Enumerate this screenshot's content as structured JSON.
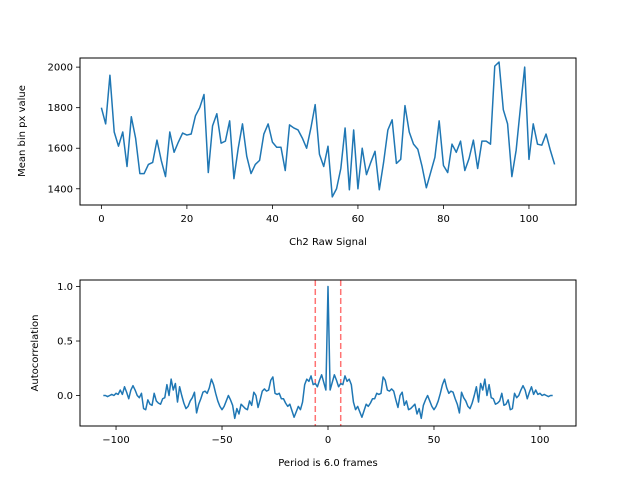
{
  "chart_data": [
    {
      "type": "line",
      "title": "",
      "xlabel": "Ch2 Raw Signal",
      "ylabel": "Mean bin px value",
      "xlim": [
        -5,
        111
      ],
      "ylim": [
        1320,
        2045
      ],
      "xticks": [
        0,
        20,
        40,
        60,
        80,
        100
      ],
      "yticks": [
        1400,
        1600,
        1800,
        2000
      ],
      "grid": false,
      "color": "#1f77b4",
      "series": [
        {
          "x": [
            0,
            1,
            2,
            3,
            4,
            5,
            6,
            7,
            8,
            9,
            10,
            11,
            12,
            13,
            14,
            15,
            16,
            17,
            18,
            19,
            20,
            21,
            22,
            23,
            24,
            25,
            26,
            27,
            28,
            29,
            30,
            31,
            32,
            33,
            34,
            35,
            36,
            37,
            38,
            39,
            40,
            41,
            42,
            43,
            44,
            45,
            46,
            47,
            48,
            49,
            50,
            51,
            52,
            53,
            54,
            55,
            56,
            57,
            58,
            59,
            60,
            61,
            62,
            63,
            64,
            65,
            66,
            67,
            68,
            69,
            70,
            71,
            72,
            73,
            74,
            75,
            76,
            77,
            78,
            79,
            80,
            81,
            82,
            83,
            84,
            85,
            86,
            87,
            88,
            89,
            90,
            91,
            92,
            93,
            94,
            95,
            96,
            97,
            98,
            99,
            100,
            101,
            102,
            103,
            104,
            105,
            106
          ],
          "y": [
            1800,
            1720,
            1960,
            1680,
            1610,
            1680,
            1510,
            1755,
            1650,
            1475,
            1475,
            1520,
            1530,
            1640,
            1540,
            1460,
            1680,
            1580,
            1630,
            1675,
            1665,
            1670,
            1760,
            1800,
            1865,
            1480,
            1710,
            1770,
            1625,
            1635,
            1735,
            1450,
            1600,
            1720,
            1560,
            1475,
            1520,
            1540,
            1670,
            1720,
            1630,
            1605,
            1605,
            1490,
            1715,
            1700,
            1690,
            1650,
            1600,
            1700,
            1815,
            1570,
            1510,
            1610,
            1360,
            1400,
            1500,
            1700,
            1395,
            1690,
            1400,
            1600,
            1470,
            1530,
            1585,
            1395,
            1530,
            1690,
            1740,
            1525,
            1545,
            1810,
            1680,
            1620,
            1595,
            1510,
            1405,
            1480,
            1555,
            1735,
            1515,
            1480,
            1620,
            1580,
            1635,
            1490,
            1550,
            1640,
            1500,
            1635,
            1635,
            1620,
            2005,
            2025,
            1790,
            1720,
            1460,
            1590,
            1800,
            2000,
            1545,
            1720,
            1620,
            1615,
            1670,
            1590,
            1520
          ]
        }
      ]
    },
    {
      "type": "line",
      "title": "",
      "xlabel": "Period is 6.0 frames",
      "ylabel": "Autocorrelation",
      "xlim": [
        -117,
        117
      ],
      "ylim": [
        -0.28,
        1.06
      ],
      "xticks": [
        -100,
        -50,
        0,
        50,
        100
      ],
      "yticks": [
        0.0,
        0.5,
        1.0
      ],
      "grid": false,
      "color": "#1f77b4",
      "vlines": [
        -6,
        6
      ],
      "vline_color": "#ff0000",
      "series": [
        {
          "x": [
            -106,
            -105,
            -104,
            -103,
            -102,
            -101,
            -100,
            -99,
            -98,
            -97,
            -96,
            -95,
            -94,
            -93,
            -92,
            -91,
            -90,
            -89,
            -88,
            -87,
            -86,
            -85,
            -84,
            -83,
            -82,
            -81,
            -80,
            -79,
            -78,
            -77,
            -76,
            -75,
            -74,
            -73,
            -72,
            -71,
            -70,
            -69,
            -68,
            -67,
            -66,
            -65,
            -64,
            -63,
            -62,
            -61,
            -60,
            -59,
            -58,
            -57,
            -56,
            -55,
            -54,
            -53,
            -52,
            -51,
            -50,
            -49,
            -48,
            -47,
            -46,
            -45,
            -44,
            -43,
            -42,
            -41,
            -40,
            -39,
            -38,
            -37,
            -36,
            -35,
            -34,
            -33,
            -32,
            -31,
            -30,
            -29,
            -28,
            -27,
            -26,
            -25,
            -24,
            -23,
            -22,
            -21,
            -20,
            -19,
            -18,
            -17,
            -16,
            -15,
            -14,
            -13,
            -12,
            -11,
            -10,
            -9,
            -8,
            -7,
            -6,
            -5,
            -4,
            -3,
            -2,
            -1,
            0,
            1,
            2,
            3,
            4,
            5,
            6,
            7,
            8,
            9,
            10,
            11,
            12,
            13,
            14,
            15,
            16,
            17,
            18,
            19,
            20,
            21,
            22,
            23,
            24,
            25,
            26,
            27,
            28,
            29,
            30,
            31,
            32,
            33,
            34,
            35,
            36,
            37,
            38,
            39,
            40,
            41,
            42,
            43,
            44,
            45,
            46,
            47,
            48,
            49,
            50,
            51,
            52,
            53,
            54,
            55,
            56,
            57,
            58,
            59,
            60,
            61,
            62,
            63,
            64,
            65,
            66,
            67,
            68,
            69,
            70,
            71,
            72,
            73,
            74,
            75,
            76,
            77,
            78,
            79,
            80,
            81,
            82,
            83,
            84,
            85,
            86,
            87,
            88,
            89,
            90,
            91,
            92,
            93,
            94,
            95,
            96,
            97,
            98,
            99,
            100,
            101,
            102,
            103,
            104,
            105,
            106
          ],
          "y": [
            0.0,
            0.0,
            -0.01,
            0.0,
            0.01,
            0.0,
            0.02,
            0.01,
            0.05,
            0.01,
            0.08,
            0.03,
            -0.03,
            0.05,
            0.09,
            0.05,
            0.0,
            -0.02,
            0.02,
            -0.12,
            -0.13,
            -0.04,
            -0.08,
            -0.09,
            0.02,
            -0.05,
            -0.07,
            -0.08,
            -0.03,
            -0.02,
            0.1,
            0.0,
            0.15,
            0.05,
            0.11,
            -0.06,
            0.08,
            0.0,
            -0.07,
            -0.12,
            -0.1,
            -0.05,
            -0.02,
            0.03,
            -0.16,
            -0.08,
            -0.03,
            0.03,
            0.04,
            0.02,
            0.07,
            0.15,
            0.1,
            0.02,
            -0.05,
            -0.1,
            -0.13,
            -0.1,
            -0.05,
            0.0,
            -0.04,
            -0.09,
            -0.21,
            -0.12,
            -0.17,
            -0.08,
            -0.1,
            -0.12,
            -0.13,
            -0.05,
            -0.09,
            0.03,
            0.0,
            -0.11,
            -0.04,
            0.04,
            0.06,
            0.04,
            0.05,
            0.14,
            0.17,
            0.02,
            0.01,
            0.02,
            -0.03,
            -0.03,
            -0.07,
            -0.1,
            -0.08,
            -0.14,
            -0.2,
            -0.15,
            -0.1,
            -0.13,
            -0.06,
            0.1,
            0.15,
            0.13,
            0.18,
            0.1,
            0.11,
            0.08,
            0.14,
            0.19,
            0.12,
            0.05,
            1.0,
            0.05,
            0.12,
            0.19,
            0.14,
            0.08,
            0.11,
            0.1,
            0.18,
            0.13,
            0.15,
            0.1,
            -0.06,
            -0.13,
            -0.1,
            -0.15,
            -0.2,
            -0.14,
            -0.08,
            -0.1,
            -0.07,
            -0.03,
            -0.03,
            0.02,
            0.01,
            0.02,
            0.17,
            0.14,
            0.05,
            0.04,
            0.06,
            0.04,
            -0.04,
            -0.11,
            0.0,
            0.03,
            -0.09,
            -0.05,
            -0.13,
            -0.12,
            -0.1,
            -0.08,
            -0.17,
            -0.12,
            -0.21,
            -0.09,
            -0.04,
            0.0,
            -0.05,
            -0.1,
            -0.13,
            -0.1,
            -0.05,
            0.02,
            0.1,
            0.15,
            0.07,
            0.02,
            0.04,
            0.03,
            -0.03,
            -0.08,
            -0.16,
            0.03,
            -0.02,
            -0.05,
            -0.1,
            -0.12,
            -0.07,
            0.0,
            0.08,
            -0.06,
            0.11,
            0.05,
            0.15,
            0.0,
            0.1,
            -0.02,
            -0.03,
            -0.08,
            -0.07,
            -0.05,
            0.02,
            -0.09,
            -0.08,
            -0.04,
            -0.13,
            -0.12,
            0.02,
            -0.02,
            0.0,
            0.05,
            0.09,
            0.05,
            -0.03,
            0.03,
            0.08,
            0.01,
            0.05,
            0.01,
            0.02,
            0.0,
            0.01,
            0.0,
            -0.01,
            0.0,
            0.0
          ]
        }
      ]
    }
  ]
}
